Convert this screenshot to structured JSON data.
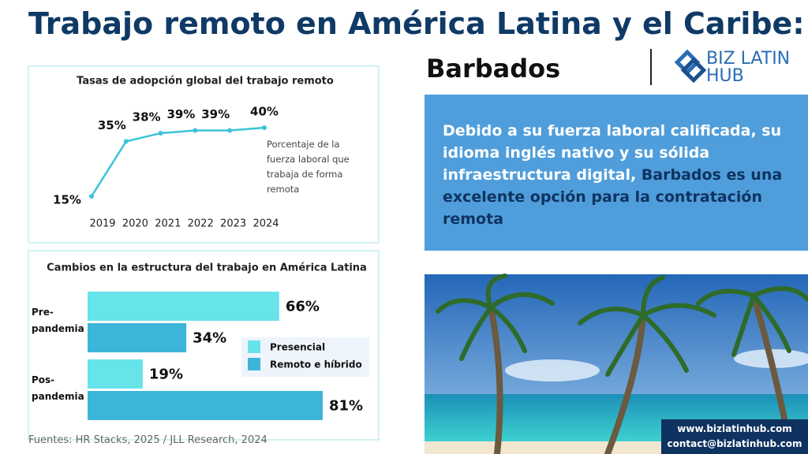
{
  "header": {
    "title": "Trabajo remoto en América Latina y el Caribe:",
    "subtitle": "Barbados",
    "logo_line1": "BIZ LATIN",
    "logo_line2": "HUB"
  },
  "panel": {
    "text": "Debido a su fuerza laboral calificada, su idioma inglés nativo y su sólida infraestructura digital, ",
    "highlight": "Barbados es una excelente opción para la contratación remota"
  },
  "sources": "Fuentes: HR Stacks, 2025 / JLL Research, 2024",
  "contact": {
    "website": "www.bizlatinhub.com",
    "email": "contact@bizlatinhub.com"
  },
  "chart_data": [
    {
      "type": "line",
      "title": "Tasas de adopción global del trabajo remoto",
      "categories": [
        "2019",
        "2020",
        "2021",
        "2022",
        "2023",
        "2024"
      ],
      "values": [
        15,
        35,
        38,
        39,
        39,
        40
      ],
      "value_labels": [
        "15%",
        "35%",
        "38%",
        "39%",
        "39%",
        "40%"
      ],
      "color": "#3cc4d8",
      "annotation": "Porcentaje de la fuerza laboral que trabaja de forma remota"
    },
    {
      "type": "bar",
      "orientation": "horizontal",
      "title": "Cambios en la estructura del trabajo en América Latina",
      "categories": [
        "Pre-pandemia",
        "Pos-pandemia"
      ],
      "legend": "center-right",
      "series": [
        {
          "name": "Presencial",
          "color": "#67e3ea",
          "values": [
            66,
            19
          ],
          "value_labels": [
            "66%",
            "19%"
          ]
        },
        {
          "name": "Remoto e híbrido",
          "color": "#3db5d9",
          "values": [
            34,
            81
          ],
          "value_labels": [
            "34%",
            "81%"
          ]
        }
      ]
    }
  ]
}
